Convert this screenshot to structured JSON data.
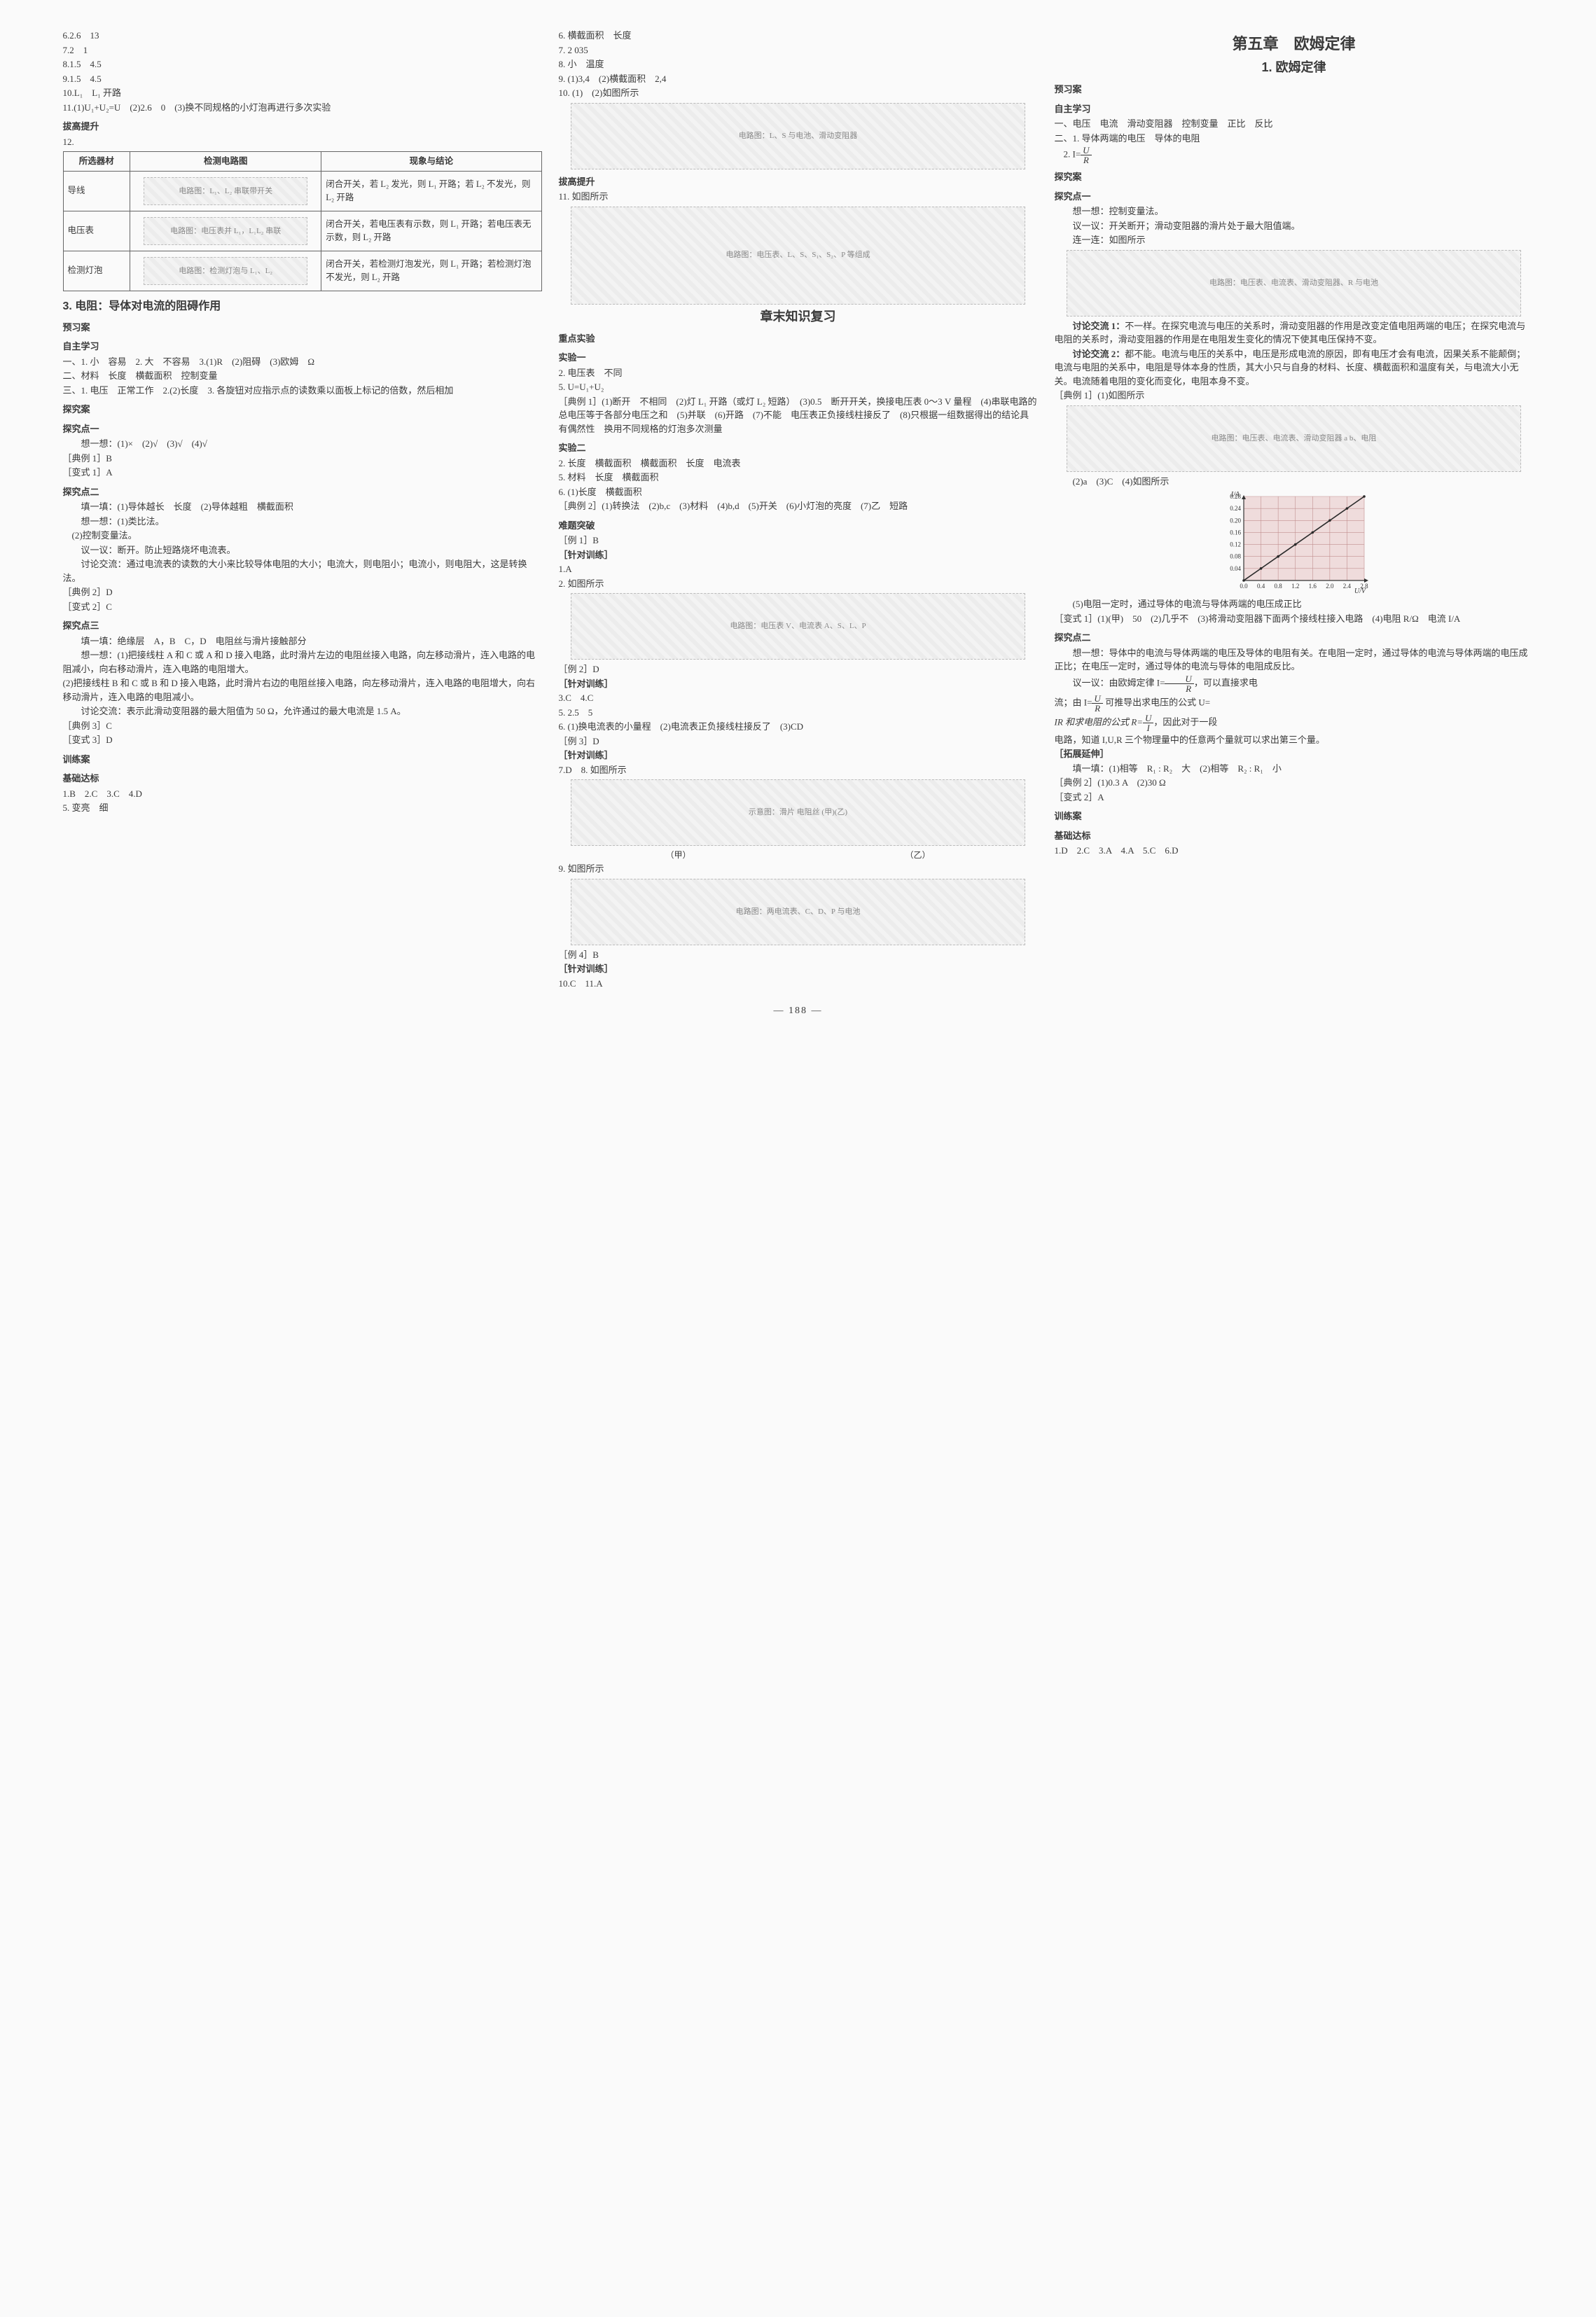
{
  "page_number": "— 188 —",
  "col1": {
    "pre": [
      "6.2.6　13",
      "7.2　1",
      "8.1.5　4.5",
      "9.1.5　4.5",
      "10.L₁　L₁ 开路",
      "11.(1)U₁+U₂=U　(2)2.6　0　(3)换不同规格的小灯泡再进行多次实验"
    ],
    "bg_label": "拔高提升",
    "table": {
      "headers": [
        "所选器材",
        "检测电路图",
        "现象与结论"
      ],
      "rows": [
        {
          "material": "导线",
          "circuit_ph": "电路图：L₁、L₂ 串联带开关",
          "result": "闭合开关，若 L₂ 发光，则 L₁ 开路；若 L₂ 不发光，则 L₂ 开路"
        },
        {
          "material": "电压表",
          "circuit_ph": "电路图：电压表并 L₁，L₁L₂ 串联",
          "result": "闭合开关，若电压表有示数，则 L₁ 开路；若电压表无示数，则 L₂ 开路"
        },
        {
          "material": "检测灯泡",
          "circuit_ph": "电路图：检测灯泡与 L₁、L₂",
          "result": "闭合开关，若检测灯泡发光，则 L₁ 开路；若检测灯泡不发光，则 L₂ 开路"
        }
      ]
    },
    "sec3_title": "3. 电阻：导体对电流的阻碍作用",
    "sec3": {
      "yuxi": "预习案",
      "zizhu": "自主学习",
      "l1": "一、1. 小　容易　2. 大　不容易　3.(1)R　(2)阻碍　(3)欧姆　Ω",
      "l2": "二、材料　长度　横截面积　控制变量",
      "l3": "三、1. 电压　正常工作　2.(2)长度　3. 各旋钮对应指示点的读数乘以面板上标记的倍数，然后相加",
      "tanjiu": "探究案",
      "dian1": "探究点一",
      "xiang1": "想一想：(1)×　(2)√　(3)√　(4)√",
      "dl1": "［典例 1］B",
      "bs1": "［变式 1］A",
      "dian2": "探究点二",
      "tian2": "填一填：(1)导体越长　长度　(2)导体越粗　横截面积",
      "xiang2a": "想一想：(1)类比法。",
      "xiang2b": "　(2)控制变量法。",
      "yiyi": "议一议：断开。防止短路烧坏电流表。",
      "taolun": "讨论交流：通过电流表的读数的大小来比较导体电阻的大小；电流大，则电阻小；电流小，则电阻大，这是转换法。",
      "dl2": "［典例 2］D",
      "bs2": "［变式 2］C",
      "dian3": "探究点三",
      "tian3": "填一填：绝缘层　A，B　C，D　电阻丝与滑片接触部分",
      "xiang3a": "想一想：(1)把接线柱 A 和 C 或 A 和 D 接入电路，此时滑片左边的电阻丝接入电路，向左移动滑片，连入电路的电阻减小，向右移动滑片，连入电路的电阻增大。",
      "xiang3b": "(2)把接线柱 B 和 C 或 B 和 D 接入电路，此时滑片右边的电阻丝接入电路，向左移动滑片，连入电路的电阻增大，向右移动滑片，连入电路的电阻减小。",
      "taolun3": "讨论交流：表示此滑动变阻器的最大阻值为 50 Ω，允许通过的最大电流是 1.5 A。",
      "dl3": "［典例 3］C",
      "bs3": "［变式 3］D",
      "xunlian": "训练案",
      "jichu": "基础达标",
      "ans1": "1.B　2.C　3.C　4.D",
      "ans2": "5. 变亮　细"
    }
  },
  "col2": {
    "top": [
      "6. 横截面积　长度",
      "7. 2 035",
      "8. 小　温度",
      "9. (1)3,4　(2)横截面积　2,4",
      "10. (1)　(2)如图所示"
    ],
    "fig10_ph": "电路图：L、S 与电池、滑动变阻器",
    "bg_label": "拔高提升",
    "bg11": "11. 如图所示",
    "fig11_ph": "电路图：电压表、L、S、S₁、S₂、P 等组成",
    "review_title": "章末知识复习",
    "zdsy": "重点实验",
    "sy1": "实验一",
    "l1": "2. 电压表　不同",
    "l2": "5. U=U₁+U₂",
    "dl1": "［典例 1］(1)断开　不相同　(2)灯 L₁ 开路（或灯 L₂ 短路）　(3)0.5　断开开关，换接电压表 0～3 V 量程　(4)串联电路的总电压等于各部分电压之和　(5)并联　(6)开路　(7)不能　电压表正负接线柱接反了　(8)只根据一组数据得出的结论具有偶然性　换用不同规格的灯泡多次测量",
    "sy2": "实验二",
    "l3": "2. 长度　横截面积　横截面积　长度　电流表",
    "l4": "5. 材料　长度　横截面积",
    "l5": "6. (1)长度　横截面积",
    "dl2": "［典例 2］(1)转换法　(2)b,c　(3)材料　(4)b,d　(5)开关　(6)小灯泡的亮度　(7)乙　短路",
    "ntp": "难题突破",
    "li1": "［例 1］B",
    "zd1": "［针对训练］",
    "zd1a": "1.A",
    "zd1b": "2. 如图所示",
    "fig_zd1_ph": "电路图：电压表 V、电流表 A、S、L、P",
    "li2": "［例 2］D",
    "zd2": "［针对训练］",
    "zd2a": "3.C　4.C",
    "zd2b": "5. 2.5　5",
    "zd2c": "6. (1)换电流表的小量程　(2)电流表正负接线柱接反了　(3)CD",
    "li3": "［例 3］D",
    "zd3": "［针对训练］",
    "zd3a": "7.D　8. 如图所示",
    "fig_zd3_ph": "示意图：滑片 电阻丝 (甲)(乙)",
    "zd3_cap_l": "（甲）",
    "zd3_cap_r": "（乙）",
    "l9": "9. 如图所示",
    "fig9_ph": "电路图：两电流表、C、D、P 与电池",
    "li4": "［例 4］B",
    "zd4": "［针对训练］",
    "zd4a": "10.C　11.A"
  },
  "col3": {
    "chapter": "第五章　欧姆定律",
    "sec1": "1. 欧姆定律",
    "yuxi": "预习案",
    "zizhu": "自主学习",
    "l1": "一、电压　电流　滑动变阻器　控制变量　正比　反比",
    "l2_prefix": "二、1. 导体两端的电压　导体的电阻",
    "l2b_prefix": "　2. I=",
    "frac1_n": "U",
    "frac1_d": "R",
    "tanjiu": "探究案",
    "dian1": "探究点一",
    "xiang1": "想一想：控制变量法。",
    "yiyi1": "议一议：开关断开；滑动变阻器的滑片处于最大阻值端。",
    "lianlian": "连一连：如图所示",
    "fig_link_ph": "电路图：电压表、电流表、滑动变阻器、R 与电池",
    "tljx1_title": "讨论交流 1：",
    "tljx1": "不一样。在探究电流与电压的关系时，滑动变阻器的作用是改变定值电阻两端的电压；在探究电流与电阻的关系时，滑动变阻器的作用是在电阻发生变化的情况下使其电压保持不变。",
    "tljx2_title": "讨论交流 2：",
    "tljx2": "都不能。电流与电压的关系中，电压是形成电流的原因，即有电压才会有电流，因果关系不能颠倒；电流与电阻的关系中，电阻是导体本身的性质，其大小只与自身的材料、长度、横截面积和温度有关，与电流大小无关。电流随着电阻的变化而变化，电阻本身不变。",
    "dl1": "［典例 1］(1)如图所示",
    "fig_dl1_ph": "电路图：电压表、电流表、滑动变阻器 a b、电阻",
    "dl1b": "(2)a　(3)C　(4)如图所示",
    "chart": {
      "xlabel": "U/V",
      "ylabel": "I/A",
      "yticks": [
        0.04,
        0.08,
        0.12,
        0.16,
        0.2,
        0.24,
        0.28
      ],
      "xticks": [
        0,
        0.4,
        0.8,
        1.2,
        1.6,
        2.0,
        2.4,
        2.8
      ],
      "grid_color": "#c28f8f",
      "axis_color": "#333333",
      "line_color": "#2a2a2a",
      "bg": "#efdcdc",
      "points_x": [
        0,
        0.4,
        0.8,
        1.2,
        1.6,
        2.0,
        2.4,
        2.8
      ],
      "points_y": [
        0,
        0.04,
        0.08,
        0.12,
        0.16,
        0.2,
        0.24,
        0.28
      ]
    },
    "dl1c": "(5)电阻一定时，通过导体的电流与导体两端的电压成正比",
    "bs1": "［变式 1］(1)(甲)　50　(2)几乎不　(3)将滑动变阻器下面两个接线柱接入电路　(4)电阻 R/Ω　电流 I/A",
    "dian2": "探究点二",
    "xiang2": "想一想：导体中的电流与导体两端的电压及导体的电阻有关。在电阻一定时，通过导体的电流与导体两端的电压成正比；在电压一定时，通过导体的电流与导体的电阻成反比。",
    "yiyi2a": "议一议：由欧姆定律 I=",
    "yiyi2b": "，可以直接求电",
    "yiyi2c": "流；由 I=",
    "yiyi2d": " 可推导出求电压的公式 U=",
    "yiyi2e": "IR 和求电阻的公式 R=",
    "yiyi2f": "，因此对于一段",
    "yiyi2g": "电路，知道 I,U,R 三个物理量中的任意两个量就可以求出第三个量。",
    "tzys": "［拓展延伸］",
    "tz1": "填一填：(1)相等　R₁ : R₂　大　(2)相等　R₂ : R₁　小",
    "dl2": "［典例 2］(1)0.3 A　(2)30 Ω",
    "bs2": "［变式 2］A",
    "xunlian": "训练案",
    "jichu": "基础达标",
    "ans": "1.D　2.C　3.A　4.A　5.C　6.D"
  }
}
